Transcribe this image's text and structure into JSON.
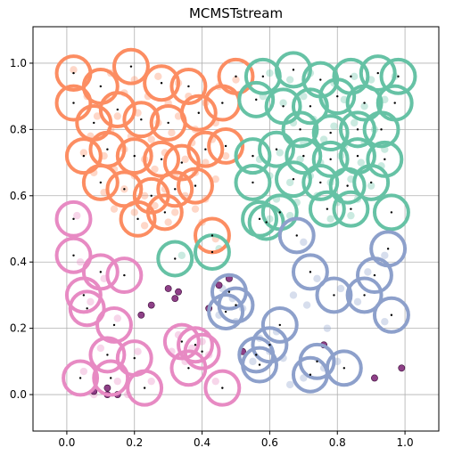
{
  "chart_data": {
    "type": "scatter",
    "title": "MCMSTstream",
    "xlabel": "",
    "ylabel": "",
    "xlim": [
      -0.1,
      1.1
    ],
    "ylim": [
      -0.11,
      1.11
    ],
    "xticks": [
      0.0,
      0.2,
      0.4,
      0.6,
      0.8,
      1.0
    ],
    "xtick_labels": [
      "0.0",
      "0.2",
      "0.4",
      "0.6",
      "0.8",
      "1.0"
    ],
    "yticks": [
      0.0,
      0.2,
      0.4,
      0.6,
      0.8,
      1.0
    ],
    "ytick_labels": [
      "0.0",
      "0.2",
      "0.4",
      "0.6",
      "0.8",
      "1.0"
    ],
    "grid": true,
    "legend": "none",
    "micro_cluster_radius": 0.05,
    "clusters": [
      {
        "color": "#fc8d62",
        "centers": [
          [
            0.02,
            0.97
          ],
          [
            0.19,
            0.99
          ],
          [
            0.1,
            0.93
          ],
          [
            0.28,
            0.94
          ],
          [
            0.36,
            0.93
          ],
          [
            0.5,
            0.96
          ],
          [
            0.02,
            0.88
          ],
          [
            0.08,
            0.82
          ],
          [
            0.15,
            0.86
          ],
          [
            0.22,
            0.83
          ],
          [
            0.3,
            0.82
          ],
          [
            0.39,
            0.85
          ],
          [
            0.46,
            0.88
          ],
          [
            0.05,
            0.72
          ],
          [
            0.12,
            0.74
          ],
          [
            0.2,
            0.72
          ],
          [
            0.28,
            0.71
          ],
          [
            0.34,
            0.7
          ],
          [
            0.41,
            0.74
          ],
          [
            0.47,
            0.75
          ],
          [
            0.1,
            0.64
          ],
          [
            0.17,
            0.62
          ],
          [
            0.25,
            0.6
          ],
          [
            0.32,
            0.62
          ],
          [
            0.38,
            0.63
          ],
          [
            0.21,
            0.53
          ],
          [
            0.29,
            0.55
          ],
          [
            0.43,
            0.48
          ]
        ],
        "points": [
          [
            0.02,
            0.98
          ],
          [
            0.13,
            0.97
          ],
          [
            0.2,
            0.95
          ],
          [
            0.27,
            0.96
          ],
          [
            0.33,
            0.94
          ],
          [
            0.45,
            0.93
          ],
          [
            0.5,
            0.95
          ],
          [
            0.06,
            0.9
          ],
          [
            0.12,
            0.89
          ],
          [
            0.17,
            0.91
          ],
          [
            0.24,
            0.9
          ],
          [
            0.3,
            0.88
          ],
          [
            0.36,
            0.9
          ],
          [
            0.41,
            0.88
          ],
          [
            0.09,
            0.84
          ],
          [
            0.15,
            0.84
          ],
          [
            0.21,
            0.85
          ],
          [
            0.27,
            0.82
          ],
          [
            0.33,
            0.84
          ],
          [
            0.38,
            0.8
          ],
          [
            0.44,
            0.82
          ],
          [
            0.07,
            0.78
          ],
          [
            0.13,
            0.8
          ],
          [
            0.19,
            0.78
          ],
          [
            0.25,
            0.77
          ],
          [
            0.31,
            0.79
          ],
          [
            0.37,
            0.76
          ],
          [
            0.43,
            0.77
          ],
          [
            0.05,
            0.73
          ],
          [
            0.11,
            0.72
          ],
          [
            0.17,
            0.74
          ],
          [
            0.23,
            0.71
          ],
          [
            0.29,
            0.73
          ],
          [
            0.35,
            0.71
          ],
          [
            0.41,
            0.7
          ],
          [
            0.47,
            0.72
          ],
          [
            0.08,
            0.67
          ],
          [
            0.14,
            0.68
          ],
          [
            0.2,
            0.66
          ],
          [
            0.26,
            0.68
          ],
          [
            0.32,
            0.66
          ],
          [
            0.38,
            0.67
          ],
          [
            0.44,
            0.65
          ],
          [
            0.11,
            0.61
          ],
          [
            0.17,
            0.62
          ],
          [
            0.23,
            0.6
          ],
          [
            0.29,
            0.62
          ],
          [
            0.35,
            0.6
          ],
          [
            0.41,
            0.59
          ],
          [
            0.14,
            0.56
          ],
          [
            0.2,
            0.55
          ],
          [
            0.26,
            0.57
          ],
          [
            0.32,
            0.55
          ],
          [
            0.38,
            0.56
          ],
          [
            0.23,
            0.51
          ],
          [
            0.3,
            0.52
          ],
          [
            0.4,
            0.52
          ],
          [
            0.44,
            0.47
          ]
        ]
      },
      {
        "color": "#66c2a5",
        "centers": [
          [
            0.58,
            0.96
          ],
          [
            0.67,
            0.98
          ],
          [
            0.75,
            0.95
          ],
          [
            0.84,
            0.96
          ],
          [
            0.92,
            0.97
          ],
          [
            0.98,
            0.96
          ],
          [
            0.56,
            0.89
          ],
          [
            0.64,
            0.87
          ],
          [
            0.72,
            0.87
          ],
          [
            0.8,
            0.9
          ],
          [
            0.88,
            0.88
          ],
          [
            0.97,
            0.88
          ],
          [
            0.69,
            0.8
          ],
          [
            0.78,
            0.79
          ],
          [
            0.86,
            0.8
          ],
          [
            0.93,
            0.8
          ],
          [
            0.55,
            0.72
          ],
          [
            0.62,
            0.74
          ],
          [
            0.7,
            0.72
          ],
          [
            0.78,
            0.71
          ],
          [
            0.86,
            0.72
          ],
          [
            0.94,
            0.71
          ],
          [
            0.55,
            0.64
          ],
          [
            0.67,
            0.65
          ],
          [
            0.75,
            0.64
          ],
          [
            0.83,
            0.63
          ],
          [
            0.9,
            0.64
          ],
          [
            0.57,
            0.53
          ],
          [
            0.63,
            0.55
          ],
          [
            0.77,
            0.56
          ],
          [
            0.84,
            0.56
          ],
          [
            0.96,
            0.55
          ],
          [
            0.59,
            0.52
          ],
          [
            0.32,
            0.41
          ],
          [
            0.43,
            0.43
          ]
        ],
        "points": [
          [
            0.6,
            0.97
          ],
          [
            0.66,
            0.95
          ],
          [
            0.72,
            0.97
          ],
          [
            0.79,
            0.94
          ],
          [
            0.85,
            0.96
          ],
          [
            0.9,
            0.95
          ],
          [
            0.97,
            0.96
          ],
          [
            0.58,
            0.9
          ],
          [
            0.64,
            0.88
          ],
          [
            0.7,
            0.9
          ],
          [
            0.76,
            0.88
          ],
          [
            0.82,
            0.89
          ],
          [
            0.88,
            0.87
          ],
          [
            0.94,
            0.89
          ],
          [
            0.67,
            0.82
          ],
          [
            0.73,
            0.83
          ],
          [
            0.79,
            0.81
          ],
          [
            0.85,
            0.82
          ],
          [
            0.91,
            0.8
          ],
          [
            0.7,
            0.76
          ],
          [
            0.76,
            0.77
          ],
          [
            0.82,
            0.75
          ],
          [
            0.88,
            0.76
          ],
          [
            0.94,
            0.74
          ],
          [
            0.57,
            0.71
          ],
          [
            0.63,
            0.73
          ],
          [
            0.69,
            0.71
          ],
          [
            0.75,
            0.7
          ],
          [
            0.81,
            0.72
          ],
          [
            0.87,
            0.7
          ],
          [
            0.93,
            0.69
          ],
          [
            0.6,
            0.66
          ],
          [
            0.66,
            0.64
          ],
          [
            0.72,
            0.66
          ],
          [
            0.78,
            0.64
          ],
          [
            0.84,
            0.65
          ],
          [
            0.9,
            0.63
          ],
          [
            0.62,
            0.59
          ],
          [
            0.68,
            0.58
          ],
          [
            0.74,
            0.6
          ],
          [
            0.8,
            0.58
          ],
          [
            0.86,
            0.59
          ],
          [
            0.6,
            0.53
          ],
          [
            0.66,
            0.54
          ],
          [
            0.78,
            0.53
          ],
          [
            0.84,
            0.54
          ],
          [
            0.34,
            0.42
          ],
          [
            0.45,
            0.44
          ]
        ]
      },
      {
        "color": "#8da0cb",
        "centers": [
          [
            0.68,
            0.48
          ],
          [
            0.95,
            0.44
          ],
          [
            0.72,
            0.37
          ],
          [
            0.91,
            0.36
          ],
          [
            0.79,
            0.3
          ],
          [
            0.88,
            0.3
          ],
          [
            0.48,
            0.31
          ],
          [
            0.5,
            0.27
          ],
          [
            0.47,
            0.25
          ],
          [
            0.96,
            0.24
          ],
          [
            0.63,
            0.21
          ],
          [
            0.6,
            0.15
          ],
          [
            0.56,
            0.12
          ],
          [
            0.57,
            0.09
          ],
          [
            0.74,
            0.1
          ],
          [
            0.82,
            0.08
          ],
          [
            0.72,
            0.06
          ]
        ],
        "points": [
          [
            0.7,
            0.46
          ],
          [
            0.94,
            0.42
          ],
          [
            0.74,
            0.35
          ],
          [
            0.89,
            0.37
          ],
          [
            0.81,
            0.32
          ],
          [
            0.86,
            0.28
          ],
          [
            0.71,
            0.27
          ],
          [
            0.67,
            0.3
          ],
          [
            0.46,
            0.32
          ],
          [
            0.49,
            0.29
          ],
          [
            0.52,
            0.26
          ],
          [
            0.45,
            0.24
          ],
          [
            0.5,
            0.22
          ],
          [
            0.62,
            0.19
          ],
          [
            0.57,
            0.17
          ],
          [
            0.6,
            0.13
          ],
          [
            0.55,
            0.1
          ],
          [
            0.64,
            0.11
          ],
          [
            0.76,
            0.08
          ],
          [
            0.8,
            0.1
          ],
          [
            0.7,
            0.05
          ],
          [
            0.66,
            0.03
          ],
          [
            0.94,
            0.22
          ],
          [
            0.77,
            0.2
          ]
        ]
      },
      {
        "color": "#e78ac3",
        "centers": [
          [
            0.02,
            0.53
          ],
          [
            0.02,
            0.42
          ],
          [
            0.1,
            0.37
          ],
          [
            0.17,
            0.36
          ],
          [
            0.05,
            0.3
          ],
          [
            0.06,
            0.26
          ],
          [
            0.14,
            0.21
          ],
          [
            0.12,
            0.12
          ],
          [
            0.2,
            0.11
          ],
          [
            0.04,
            0.05
          ],
          [
            0.13,
            0.05
          ],
          [
            0.23,
            0.02
          ],
          [
            0.34,
            0.16
          ],
          [
            0.38,
            0.15
          ],
          [
            0.4,
            0.13
          ],
          [
            0.36,
            0.08
          ],
          [
            0.46,
            0.02
          ]
        ],
        "points": [
          [
            0.03,
            0.54
          ],
          [
            0.04,
            0.4
          ],
          [
            0.11,
            0.35
          ],
          [
            0.07,
            0.28
          ],
          [
            0.15,
            0.23
          ],
          [
            0.1,
            0.14
          ],
          [
            0.21,
            0.13
          ],
          [
            0.05,
            0.07
          ],
          [
            0.15,
            0.04
          ],
          [
            0.25,
            0.04
          ],
          [
            0.33,
            0.18
          ],
          [
            0.37,
            0.14
          ],
          [
            0.4,
            0.16
          ],
          [
            0.42,
            0.12
          ],
          [
            0.35,
            0.1
          ],
          [
            0.31,
            0.13
          ],
          [
            0.44,
            0.04
          ],
          [
            0.08,
            0.0
          ],
          [
            0.18,
            0.0
          ]
        ]
      }
    ],
    "noise_color": "#7a1f72",
    "noise_points": [
      [
        0.3,
        0.32
      ],
      [
        0.33,
        0.31
      ],
      [
        0.32,
        0.29
      ],
      [
        0.25,
        0.27
      ],
      [
        0.22,
        0.24
      ],
      [
        0.42,
        0.26
      ],
      [
        0.08,
        0.01
      ],
      [
        0.12,
        0.0
      ],
      [
        0.52,
        0.13
      ],
      [
        0.76,
        0.15
      ],
      [
        0.91,
        0.05
      ],
      [
        0.99,
        0.08
      ],
      [
        0.48,
        0.35
      ],
      [
        0.45,
        0.33
      ],
      [
        0.12,
        0.02
      ],
      [
        0.15,
        0.0
      ]
    ]
  }
}
